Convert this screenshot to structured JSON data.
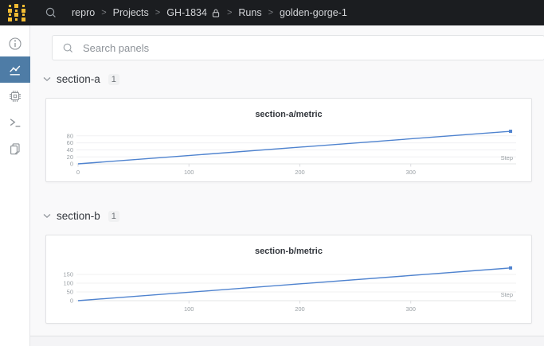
{
  "navbar": {
    "items": [
      {
        "label": "repro",
        "lock": false
      },
      {
        "label": "Projects",
        "lock": false
      },
      {
        "label": "GH-1834",
        "lock": true
      },
      {
        "label": "Runs",
        "lock": false
      },
      {
        "label": "golden-gorge-1",
        "lock": false
      }
    ]
  },
  "sidebar": {
    "items": [
      {
        "name": "overview",
        "icon": "info-icon",
        "selected": false
      },
      {
        "name": "charts",
        "icon": "line-chart-icon",
        "selected": true
      },
      {
        "name": "system",
        "icon": "chip-icon",
        "selected": false
      },
      {
        "name": "logs",
        "icon": "terminal-icon",
        "selected": false
      },
      {
        "name": "files",
        "icon": "files-icon",
        "selected": false
      }
    ]
  },
  "search": {
    "placeholder": "Search panels"
  },
  "sections": [
    {
      "label": "section-a",
      "count": "1"
    },
    {
      "label": "section-b",
      "count": "1"
    }
  ],
  "chart_data": [
    {
      "type": "line",
      "title": "section-a/metric",
      "xlabel": "Step",
      "ylabel": "",
      "x": [
        0,
        390
      ],
      "values": [
        0,
        93
      ],
      "yticks": [
        0,
        20,
        40,
        60,
        80
      ],
      "xticks": [
        0,
        100,
        200,
        300
      ],
      "ylim": [
        0,
        100
      ],
      "xlim": [
        0,
        395
      ],
      "grid": true,
      "legend": "none",
      "line_color": "#4f83cf"
    },
    {
      "type": "line",
      "title": "section-b/metric",
      "xlabel": "Step",
      "ylabel": "",
      "x": [
        0,
        390
      ],
      "values": [
        0,
        187
      ],
      "yticks": [
        0,
        50,
        100,
        150
      ],
      "xticks": [
        100,
        200,
        300
      ],
      "ylim": [
        0,
        200
      ],
      "xlim": [
        0,
        395
      ],
      "grid": true,
      "legend": "none",
      "line_color": "#4f83cf"
    }
  ],
  "colors": {
    "navbar_bg": "#1b1d20",
    "logo_yellow": "#f2bc33",
    "sidebar_selected_bg": "#4e7ca6",
    "line_blue": "#4f83cf",
    "grid_line": "#f0f0f2",
    "axis_text": "#9aa0a5"
  }
}
